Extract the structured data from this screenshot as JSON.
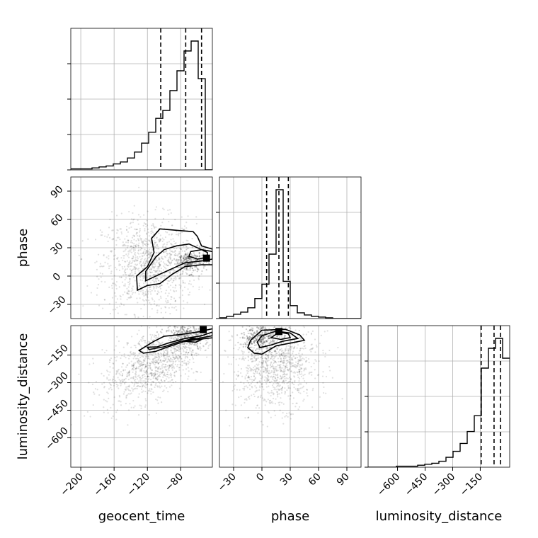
{
  "chart_data": {
    "type": "corner",
    "parameters": [
      {
        "name": "geocent_time",
        "xlabel": "geocent_time",
        "ylabel": "",
        "range": [
          -212,
          -42
        ],
        "ticks": [
          -200,
          -160,
          -120,
          -80
        ],
        "tick_labels": [
          "−200",
          "−160",
          "−120",
          "−80"
        ],
        "quantiles": [
          -104,
          -74,
          -55
        ],
        "hist": {
          "edges": [
            -212,
            -203.5,
            -195,
            -186.5,
            -178,
            -169.5,
            -161,
            -152.5,
            -144,
            -135.5,
            -127,
            -118.5,
            -110,
            -101.5,
            -93,
            -84.5,
            -76,
            -67.5,
            -59,
            -50.5,
            -42
          ],
          "counts": [
            1,
            1,
            1,
            2,
            3,
            4,
            6,
            8,
            12,
            18,
            27,
            38,
            52,
            60,
            80,
            100,
            120,
            130,
            92,
            0
          ]
        }
      },
      {
        "name": "phase",
        "xlabel": "phase",
        "ylabel": "phase",
        "range": [
          -45,
          105
        ],
        "ticks": [
          -30,
          0,
          30,
          60,
          90
        ],
        "tick_labels": [
          "−30",
          "0",
          "30",
          "60",
          "90"
        ],
        "quantiles": [
          5,
          18,
          28
        ],
        "hist": {
          "edges": [
            -45,
            -37.5,
            -30,
            -22.5,
            -15,
            -7.5,
            0,
            7.5,
            15,
            22.5,
            30,
            37.5,
            45,
            52.5,
            60,
            67.5,
            75,
            82.5,
            90,
            97.5,
            105
          ],
          "counts": [
            1,
            3,
            6,
            9,
            15,
            28,
            48,
            90,
            180,
            52,
            18,
            8,
            5,
            3,
            2,
            1,
            0,
            0,
            0,
            0
          ]
        }
      },
      {
        "name": "luminosity_distance",
        "xlabel": "luminosity_distance",
        "ylabel": "luminosity_distance",
        "range": [
          -760,
          10
        ],
        "ticks": [
          -600,
          -450,
          -300,
          -150
        ],
        "tick_labels": [
          "−600",
          "−450",
          "−300",
          "−150"
        ],
        "quantiles": [
          -145,
          -75,
          -40
        ],
        "hist": {
          "edges": [
            -760,
            -721.5,
            -683,
            -644.5,
            -606,
            -567.5,
            -529,
            -490.5,
            -452,
            -413.5,
            -375,
            -336.5,
            -298,
            -259.5,
            -221,
            -182.5,
            -144,
            -105.5,
            -67,
            -28.5,
            10
          ],
          "counts": [
            0,
            0,
            0,
            0,
            1,
            1,
            1,
            2,
            3,
            4,
            6,
            10,
            16,
            24,
            36,
            52,
            100,
            120,
            130,
            110
          ]
        }
      }
    ],
    "pairs": [
      {
        "x": "geocent_time",
        "y": "phase",
        "contours": [
          [
            [
              -65,
              47
            ],
            [
              -105,
              50
            ],
            [
              -115,
              40
            ],
            [
              -112,
              25
            ],
            [
              -120,
              10
            ],
            [
              -133,
              0
            ],
            [
              -132,
              -15
            ],
            [
              -120,
              -10
            ],
            [
              -105,
              -8
            ],
            [
              -90,
              2
            ],
            [
              -75,
              10
            ],
            [
              -55,
              12
            ],
            [
              -40,
              12
            ],
            [
              -40,
              28
            ],
            [
              -55,
              32
            ],
            [
              -60,
              42
            ]
          ],
          [
            [
              -70,
              34
            ],
            [
              -85,
              32
            ],
            [
              -100,
              28
            ],
            [
              -110,
              20
            ],
            [
              -122,
              5
            ],
            [
              -122,
              -5
            ],
            [
              -105,
              2
            ],
            [
              -90,
              8
            ],
            [
              -75,
              14
            ],
            [
              -55,
              16
            ],
            [
              -42,
              18
            ],
            [
              -42,
              26
            ],
            [
              -55,
              28
            ]
          ],
          [
            [
              -55,
              28
            ],
            [
              -68,
              26
            ],
            [
              -70,
              21
            ],
            [
              -60,
              18
            ],
            [
              -48,
              20
            ],
            [
              -48,
              25
            ]
          ]
        ],
        "density_peak": [
          -49,
          19
        ]
      },
      {
        "x": "geocent_time",
        "y": "luminosity_distance",
        "contours": [
          [
            [
              -112,
              -75
            ],
            [
              -100,
              -48
            ],
            [
              -80,
              -38
            ],
            [
              -60,
              -25
            ],
            [
              -40,
              -5
            ],
            [
              -40,
              -55
            ],
            [
              -50,
              -60
            ],
            [
              -75,
              -75
            ],
            [
              -95,
              -105
            ],
            [
              -110,
              -130
            ],
            [
              -125,
              -140
            ],
            [
              -130,
              -125
            ]
          ],
          [
            [
              -108,
              -105
            ],
            [
              -95,
              -85
            ],
            [
              -75,
              -60
            ],
            [
              -55,
              -45
            ],
            [
              -42,
              -25
            ],
            [
              -42,
              -45
            ],
            [
              -60,
              -60
            ],
            [
              -80,
              -75
            ],
            [
              -100,
              -105
            ],
            [
              -118,
              -120
            ],
            [
              -120,
              -108
            ]
          ],
          [
            [
              -75,
              -75
            ],
            [
              -66,
              -58
            ],
            [
              -55,
              -65
            ],
            [
              -62,
              -80
            ]
          ]
        ],
        "density_peak": [
          -53,
          -12
        ]
      },
      {
        "x": "phase",
        "y": "luminosity_distance",
        "contours": [
          [
            [
              -12,
              -70
            ],
            [
              0,
              -15
            ],
            [
              25,
              -10
            ],
            [
              40,
              -40
            ],
            [
              45,
              -70
            ],
            [
              30,
              -85
            ],
            [
              15,
              -100
            ],
            [
              0,
              -145
            ],
            [
              -8,
              -140
            ],
            [
              -15,
              -110
            ]
          ],
          [
            [
              -5,
              -80
            ],
            [
              0,
              -45
            ],
            [
              15,
              -20
            ],
            [
              30,
              -30
            ],
            [
              38,
              -60
            ],
            [
              22,
              -75
            ],
            [
              10,
              -95
            ],
            [
              -2,
              -110
            ]
          ],
          [
            [
              10,
              -55
            ],
            [
              18,
              -25
            ],
            [
              28,
              -35
            ],
            [
              30,
              -55
            ],
            [
              20,
              -65
            ]
          ]
        ],
        "density_peak": [
          18,
          -22
        ]
      }
    ]
  }
}
